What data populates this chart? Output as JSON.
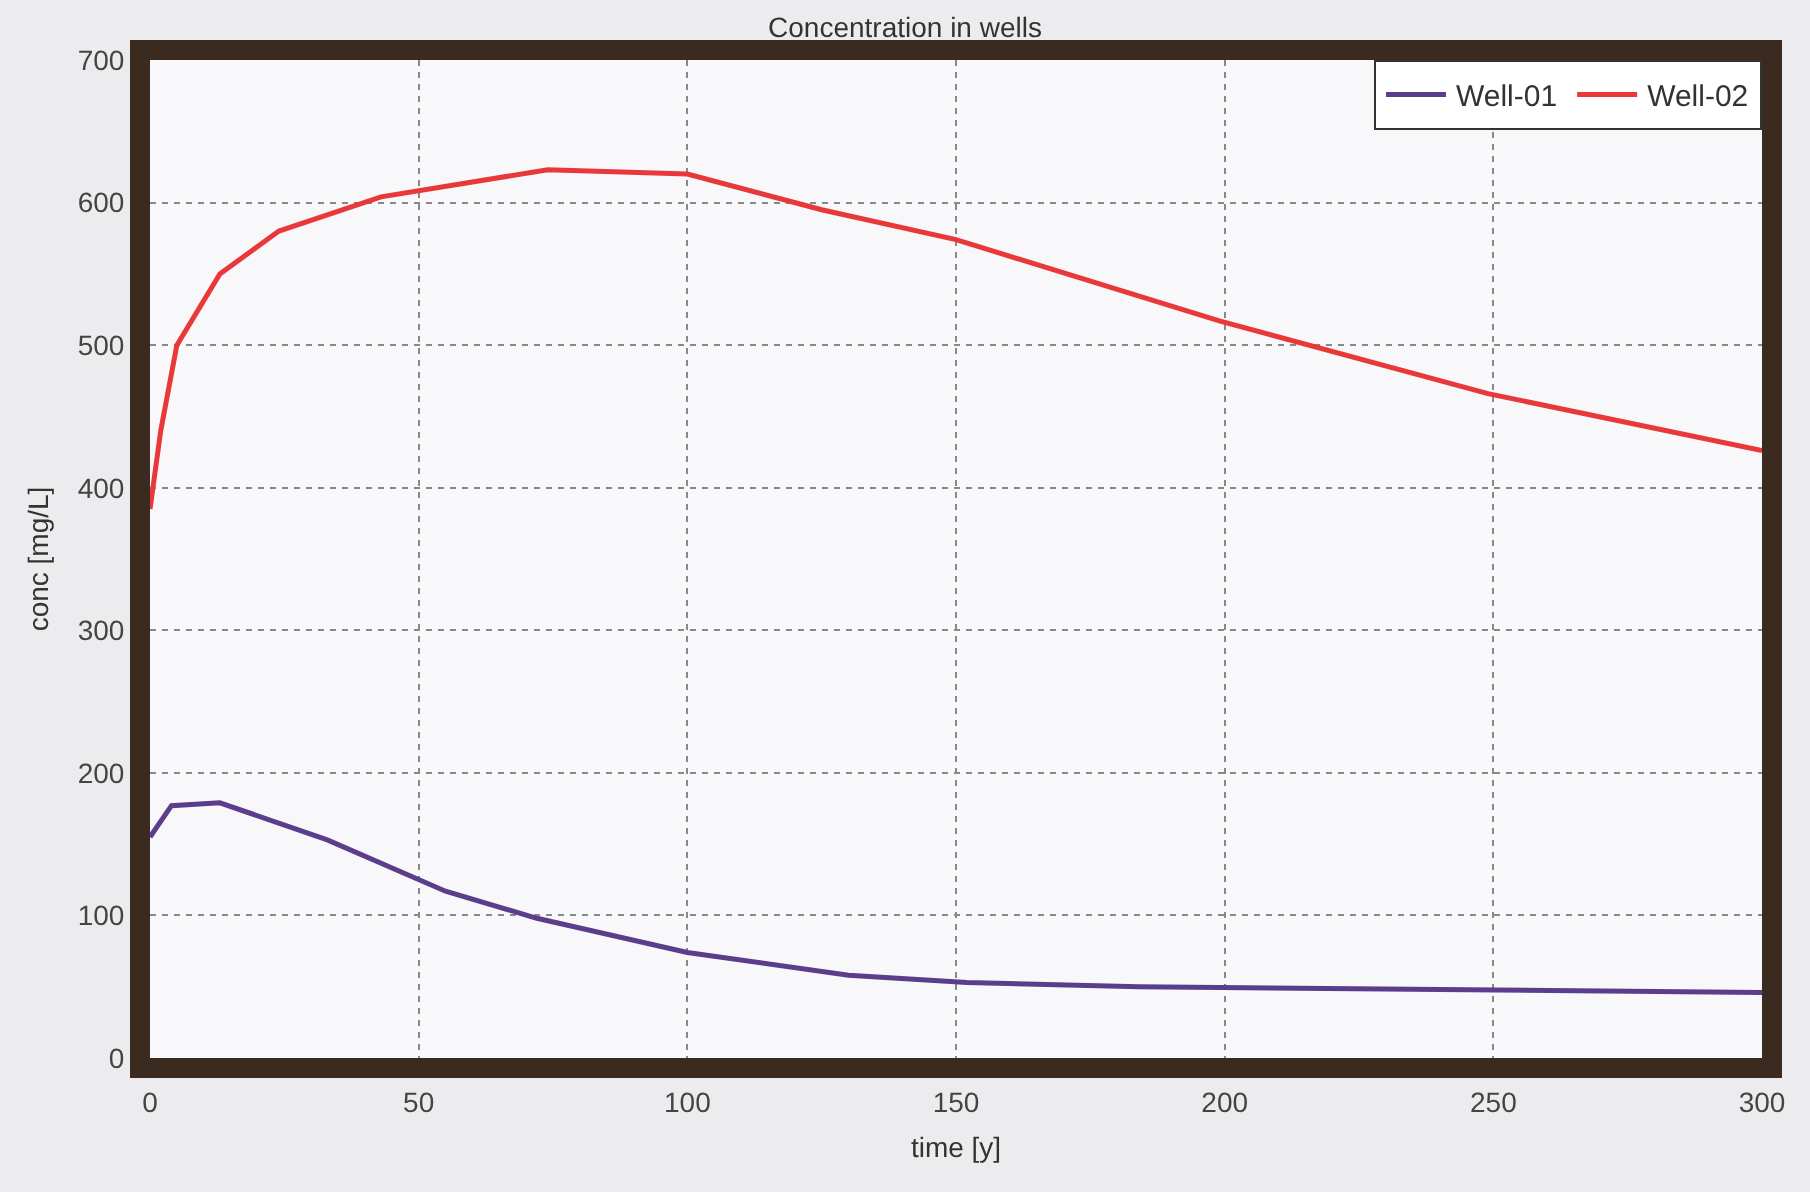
{
  "chart_data": {
    "type": "line",
    "title": "Concentration in wells",
    "xlabel": "time [y]",
    "ylabel": "conc [mg/L]",
    "xlim": [
      0,
      300
    ],
    "xticks": [
      0,
      50,
      100,
      150,
      200,
      250,
      300
    ],
    "ylim": [
      0,
      700
    ],
    "yticks": [
      0,
      100,
      200,
      300,
      400,
      500,
      600,
      700
    ],
    "grid": true,
    "legend": "top right",
    "marker": "none",
    "line_style": "solid",
    "series": [
      {
        "name": "Well-01",
        "color": "#5b3d8c",
        "x": [
          0,
          4,
          13,
          33,
          55,
          72,
          100,
          130,
          152,
          184,
          240,
          300
        ],
        "values": [
          155,
          177,
          179,
          153,
          117,
          98,
          74,
          58,
          53,
          50,
          48,
          46
        ]
      },
      {
        "name": "Well-02",
        "color": "#e8383a",
        "x": [
          0,
          2,
          5,
          13,
          24,
          43,
          74,
          100,
          125,
          150,
          199,
          249,
          300
        ],
        "values": [
          385,
          440,
          500,
          550,
          580,
          604,
          623,
          620,
          595,
          574,
          517,
          466,
          426
        ]
      }
    ]
  }
}
